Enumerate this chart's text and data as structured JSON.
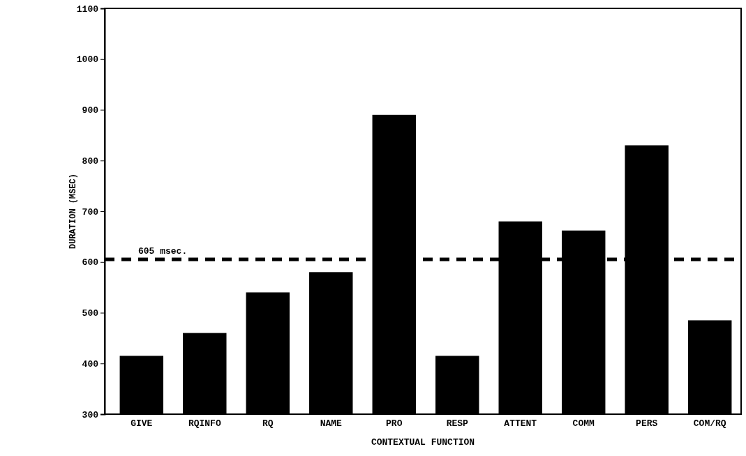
{
  "chart_data": {
    "type": "bar",
    "xlabel": "CONTEXTUAL FUNCTION",
    "ylabel": "DURATION (MSEC)",
    "categories": [
      "GIVE",
      "RQINFO",
      "RQ",
      "NAME",
      "PRO",
      "RESP",
      "ATTENT",
      "COMM",
      "PERS",
      "COM/RQ"
    ],
    "values": [
      415,
      460,
      540,
      580,
      890,
      415,
      680,
      662,
      830,
      485
    ],
    "color": "#000000",
    "ylim": [
      300,
      1100
    ],
    "yticks": [
      300,
      400,
      500,
      600,
      700,
      800,
      900,
      1000,
      1100
    ],
    "ref_lines": [
      {
        "axis": "y",
        "value": 605,
        "label": "605 msec.",
        "line_style": "dashed",
        "color": "#000000"
      }
    ]
  }
}
